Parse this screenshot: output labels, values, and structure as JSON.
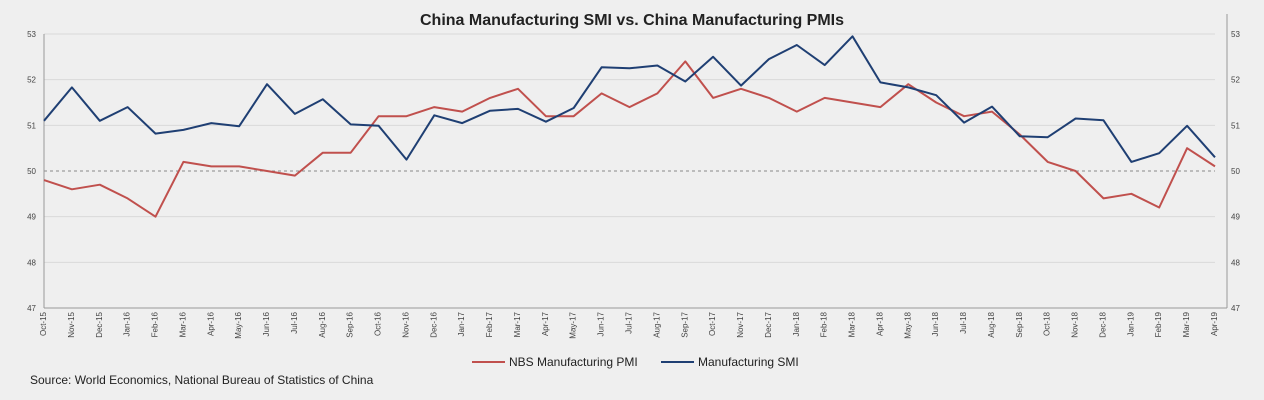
{
  "chart_data": {
    "type": "line",
    "title": "China Manufacturing SMI vs. China Manufacturing PMIs",
    "source": "Source: World Economics, National Bureau of Statistics of China",
    "categories": [
      "Oct-15",
      "Nov-15",
      "Dec-15",
      "Jan-16",
      "Feb-16",
      "Mar-16",
      "Apr-16",
      "May-16",
      "Jun-16",
      "Jul-16",
      "Aug-16",
      "Sep-16",
      "Oct-16",
      "Nov-16",
      "Dec-16",
      "Jan-17",
      "Feb-17",
      "Mar-17",
      "Apr-17",
      "May-17",
      "Jun-17",
      "Jul-17",
      "Aug-17",
      "Sep-17",
      "Oct-17",
      "Nov-17",
      "Dec-17",
      "Jan-18",
      "Feb-18",
      "Mar-18",
      "Apr-18",
      "May-18",
      "Jun-18",
      "Jul-18",
      "Aug-18",
      "Sep-18",
      "Oct-18",
      "Nov-18",
      "Dec-18",
      "Jan-19",
      "Feb-19",
      "Mar-19",
      "Apr-19"
    ],
    "series": [
      {
        "name": "NBS Manufacturing PMI",
        "color": "#c0504d",
        "values": [
          49.8,
          49.6,
          49.7,
          49.4,
          49.0,
          50.2,
          50.1,
          50.1,
          50.0,
          49.9,
          50.4,
          50.4,
          51.2,
          51.2,
          51.4,
          51.3,
          51.6,
          51.8,
          51.2,
          51.2,
          51.7,
          51.4,
          51.7,
          52.4,
          51.6,
          51.8,
          51.6,
          51.3,
          51.6,
          51.5,
          51.4,
          51.9,
          51.5,
          51.2,
          51.3,
          50.8,
          50.2,
          50.0,
          49.4,
          49.5,
          49.2,
          50.5,
          50.1
        ]
      },
      {
        "name": "Manufacturing SMI",
        "color": "#1f3f73",
        "values": [
          51.1,
          51.83,
          51.1,
          51.4,
          50.82,
          50.9,
          51.05,
          50.98,
          51.9,
          51.25,
          51.57,
          51.02,
          50.99,
          50.25,
          51.22,
          51.05,
          51.32,
          51.36,
          51.08,
          51.38,
          52.27,
          52.25,
          52.31,
          51.96,
          52.5,
          51.87,
          52.45,
          52.76,
          52.32,
          52.95,
          51.94,
          51.83,
          51.66,
          51.06,
          51.41,
          50.76,
          50.74,
          51.15,
          51.11,
          50.2,
          50.39,
          50.99,
          50.3
        ]
      }
    ],
    "y_ticks": [
      "47",
      "48",
      "49",
      "50",
      "51",
      "52",
      "53"
    ],
    "ylim": [
      47,
      53
    ],
    "reference_line": 50,
    "grid": true,
    "legend_position": "bottom"
  }
}
